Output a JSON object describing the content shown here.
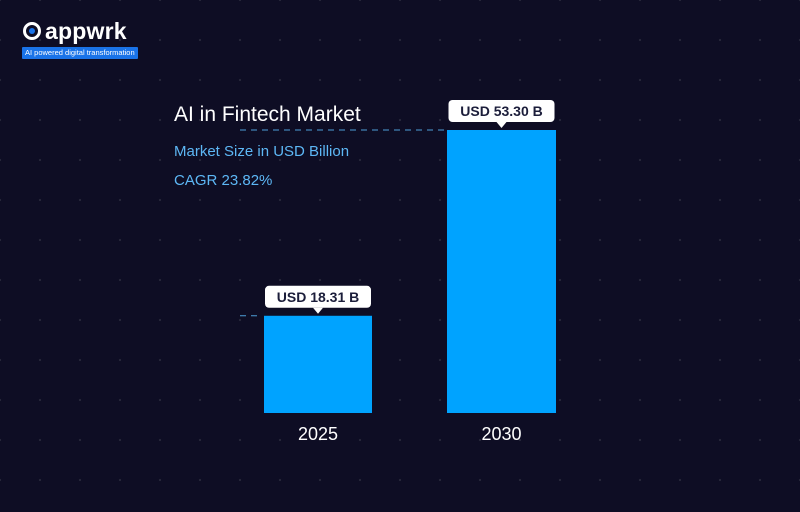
{
  "brand": {
    "name": "appwrk",
    "tagline": "AI powered digital transformation",
    "mark_color": "#1a73e8"
  },
  "chart_data": {
    "type": "bar",
    "title": "AI in Fintech Market",
    "subtitle": "Market Size in USD Billion",
    "annotation": "CAGR 23.82%",
    "categories": [
      "2025",
      "2030"
    ],
    "values": [
      18.31,
      53.3
    ],
    "data_labels": [
      "USD 18.31 B",
      "USD 53.30 B"
    ],
    "xlabel": "",
    "ylabel": "",
    "ylim": [
      0,
      53.3
    ],
    "grid": false,
    "legend": "none",
    "bar_color": "#00a3ff"
  }
}
